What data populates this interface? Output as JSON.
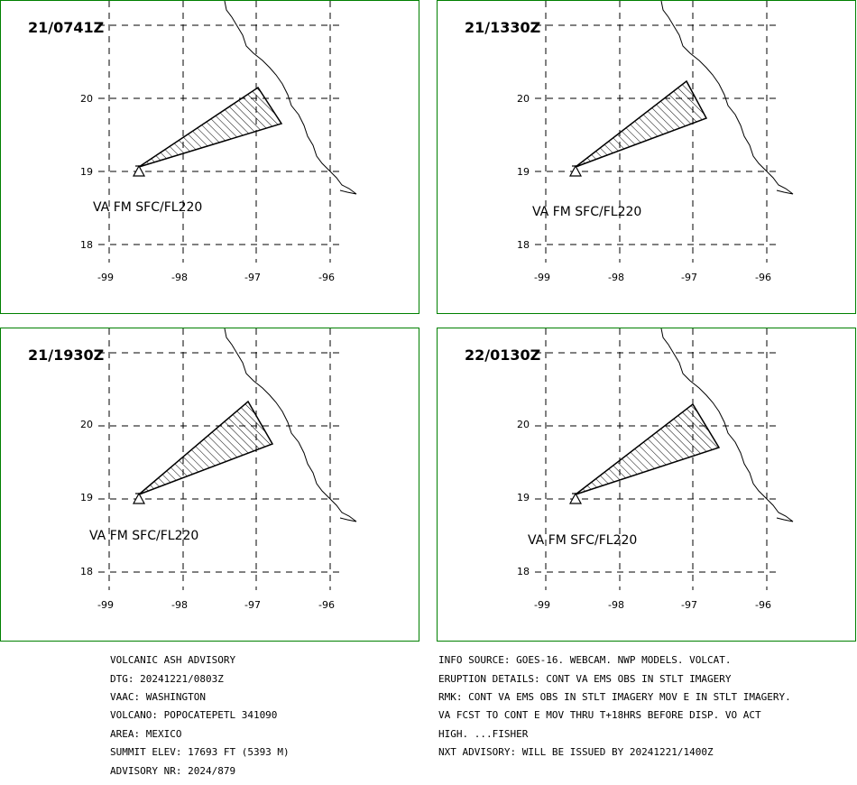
{
  "panels": [
    {
      "time": "21/0741Z",
      "va_label": "VA FM SFC/FL220",
      "y_ticks": [
        "20",
        "19",
        "18"
      ],
      "x_ticks": [
        "-99",
        "-98",
        "-97",
        "-96"
      ]
    },
    {
      "time": "21/1330Z",
      "va_label": "VA FM SFC/FL220",
      "y_ticks": [
        "20",
        "19",
        "18"
      ],
      "x_ticks": [
        "-99",
        "-98",
        "-97",
        "-96"
      ]
    },
    {
      "time": "21/1930Z",
      "va_label": "VA FM SFC/FL220",
      "y_ticks": [
        "20",
        "19",
        "18"
      ],
      "x_ticks": [
        "-99",
        "-98",
        "-97",
        "-96"
      ]
    },
    {
      "time": "22/0130Z",
      "va_label": "VA FM SFC/FL220",
      "y_ticks": [
        "20",
        "19",
        "18"
      ],
      "x_ticks": [
        "-99",
        "-98",
        "-97",
        "-96"
      ]
    }
  ],
  "advisory_left": [
    "VOLCANIC ASH ADVISORY",
    "DTG: 20241221/0803Z",
    "VAAC: WASHINGTON",
    "VOLCANO: POPOCATEPETL 341090",
    "AREA: MEXICO",
    "SUMMIT ELEV: 17693 FT (5393 M)",
    "ADVISORY NR: 2024/879"
  ],
  "advisory_right": [
    "INFO SOURCE: GOES-16. WEBCAM. NWP MODELS. VOLCAT.",
    "ERUPTION DETAILS: CONT VA EMS OBS IN STLT IMAGERY",
    "RMK: CONT VA EMS OBS IN STLT IMAGERY MOV E IN STLT IMAGERY.",
    "VA FCST TO CONT E MOV THRU T+18HRS BEFORE DISP. VO ACT",
    "HIGH. ...FISHER",
    "NXT ADVISORY: WILL BE ISSUED BY 20241221/1400Z"
  ],
  "colors": {
    "border": "#008000",
    "line": "#000000"
  }
}
